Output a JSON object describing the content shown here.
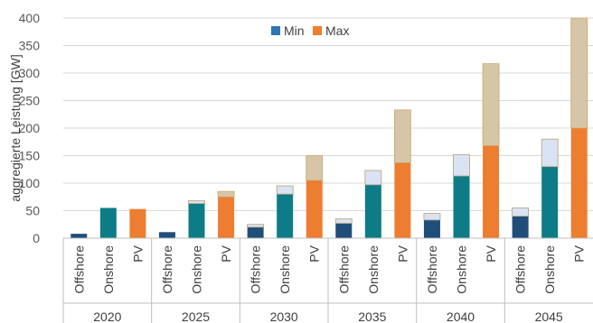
{
  "chart_data": {
    "type": "bar",
    "title": "",
    "xlabel": "",
    "ylabel": "aggregierte Leistung [GW]",
    "ylim": [
      0,
      400
    ],
    "yticks": [
      0,
      50,
      100,
      150,
      200,
      250,
      300,
      350,
      400
    ],
    "grid": true,
    "legend_position": "top-center",
    "legend": [
      {
        "label": "Min",
        "color": "#2e75b6"
      },
      {
        "label": "Max",
        "color": "#ed7d31"
      }
    ],
    "stacking": "min bar with max-range segment stacked on top",
    "years": [
      "2020",
      "2025",
      "2030",
      "2035",
      "2040",
      "2045"
    ],
    "technologies": [
      "Offshore",
      "Onshore",
      "PV"
    ],
    "colors": {
      "Offshore": {
        "min": "#1f4e79",
        "range": "#dae3f3"
      },
      "Onshore": {
        "min": "#0e7c86",
        "range": "#dae3f3"
      },
      "PV": {
        "min": "#ed7d31",
        "range": "#d6c6a8"
      }
    },
    "series": [
      {
        "name": "Min",
        "values": {
          "2020": [
            8,
            55,
            53
          ],
          "2025": [
            11,
            63,
            75
          ],
          "2030": [
            20,
            80,
            105
          ],
          "2035": [
            27,
            97,
            137
          ],
          "2040": [
            33,
            113,
            168
          ],
          "2045": [
            40,
            130,
            200
          ]
        }
      },
      {
        "name": "Max",
        "values": {
          "2020": [
            8,
            55,
            53
          ],
          "2025": [
            11,
            68,
            85
          ],
          "2030": [
            25,
            95,
            150
          ],
          "2035": [
            35,
            123,
            233
          ],
          "2040": [
            45,
            152,
            317
          ],
          "2045": [
            55,
            180,
            400
          ]
        }
      }
    ]
  }
}
